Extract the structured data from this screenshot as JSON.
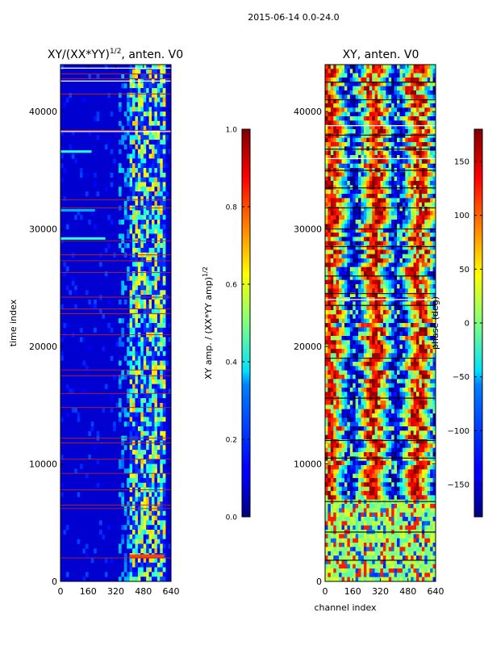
{
  "suptitle": "2015-06-14 0.0-24.0",
  "chart_data": [
    {
      "type": "heatmap",
      "title_prefix": "XY/(XX*YY)",
      "title_exp": "1/2",
      "title_suffix": ", anten. V0",
      "xlabel": "",
      "ylabel": "time index",
      "x_ticks": [
        0,
        160,
        320,
        480,
        640
      ],
      "y_ticks": [
        0,
        10000,
        20000,
        30000,
        40000
      ],
      "xlim": [
        0,
        640
      ],
      "ylim": [
        0,
        44000
      ],
      "colorbar": {
        "label_prefix": "XY amp. / (XX*YY amp)",
        "label_exp": "1/2",
        "range": [
          0.0,
          1.0
        ],
        "ticks": [
          "0.0",
          "0.2",
          "0.4",
          "0.6",
          "0.8",
          "1.0"
        ],
        "tick_values": [
          0.0,
          0.2,
          0.4,
          0.6,
          0.8,
          1.0
        ]
      },
      "colormap": "jet",
      "features": {
        "background_value": 0.08,
        "bright_channel_band": [
          400,
          600
        ],
        "flagged_rows_red": [
          2000,
          6200,
          6500,
          7800,
          9200,
          10400,
          11800,
          12200,
          14800,
          16000,
          17500,
          18000,
          21000,
          22800,
          23200,
          24200,
          26300,
          27300,
          27800,
          29000,
          31800,
          32500,
          38400,
          41500,
          42800,
          43200
        ]
      }
    },
    {
      "type": "heatmap",
      "title": "XY, anten. V0",
      "xlabel": "channel index",
      "ylabel": "",
      "x_ticks": [
        0,
        160,
        320,
        480,
        640
      ],
      "y_ticks": [
        0,
        10000,
        20000,
        30000,
        40000
      ],
      "xlim": [
        0,
        640
      ],
      "ylim": [
        0,
        44000
      ],
      "colorbar": {
        "label": "phase (deg)",
        "range": [
          -180,
          180
        ],
        "ticks": [
          "−150",
          "−100",
          "−50",
          "0",
          "50",
          "100",
          "150"
        ],
        "tick_values": [
          -150,
          -100,
          -50,
          0,
          50,
          100,
          150
        ]
      },
      "colormap": "jet",
      "features": {
        "calm_region_below": 6800,
        "black_gap_rows": [
          1800,
          4200,
          6800,
          10500,
          12000,
          15600,
          19000,
          23500,
          24500,
          26000,
          28500,
          30000,
          31800,
          33500,
          35000,
          36800,
          38000,
          41000,
          42500
        ]
      }
    }
  ]
}
